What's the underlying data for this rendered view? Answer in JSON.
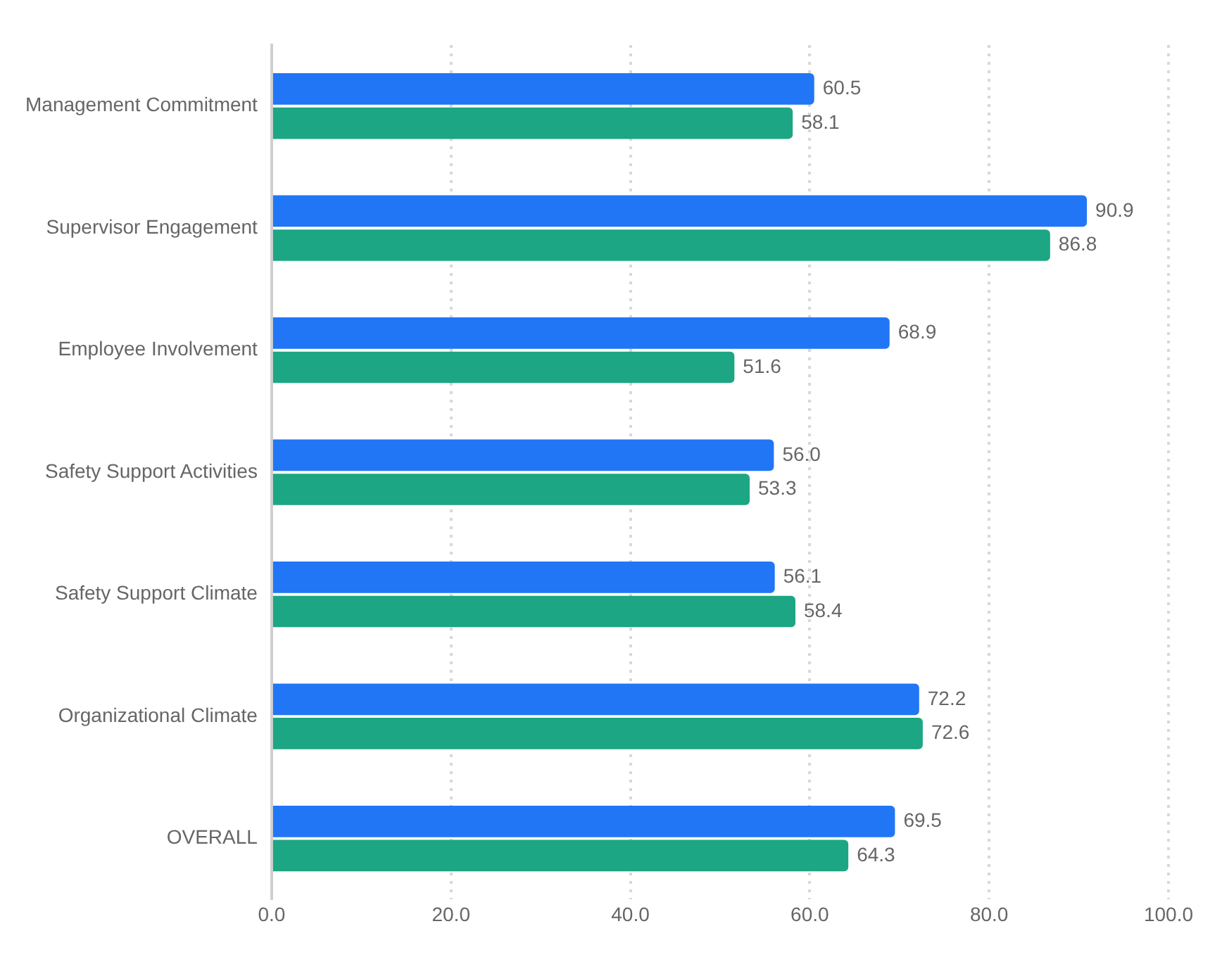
{
  "chart_data": {
    "type": "bar",
    "orientation": "horizontal",
    "categories": [
      "Management Commitment",
      "Supervisor Engagement",
      "Employee Involvement",
      "Safety Support Activities",
      "Safety Support Climate",
      "Organizational Climate",
      "OVERALL"
    ],
    "series": [
      {
        "color": "#2176f6",
        "values": [
          60.5,
          90.9,
          68.9,
          56.0,
          56.1,
          72.2,
          69.5
        ],
        "value_labels": [
          "60.5",
          "90.9",
          "68.9",
          "56.0",
          "56.1",
          "72.2",
          "69.5"
        ]
      },
      {
        "color": "#1ca683",
        "values": [
          58.1,
          86.8,
          51.6,
          53.3,
          58.4,
          72.6,
          64.3
        ],
        "value_labels": [
          "58.1",
          "86.8",
          "51.6",
          "53.3",
          "58.4",
          "72.6",
          "64.3"
        ]
      }
    ],
    "xlim": [
      0,
      100
    ],
    "xticks": [
      {
        "value": 0,
        "label": "0.0"
      },
      {
        "value": 20,
        "label": "20.0"
      },
      {
        "value": 40,
        "label": "40.0"
      },
      {
        "value": 60,
        "label": "60.0"
      },
      {
        "value": 80,
        "label": "80.0"
      },
      {
        "value": 100,
        "label": "100.0"
      }
    ],
    "grid": "x",
    "legend": false
  }
}
